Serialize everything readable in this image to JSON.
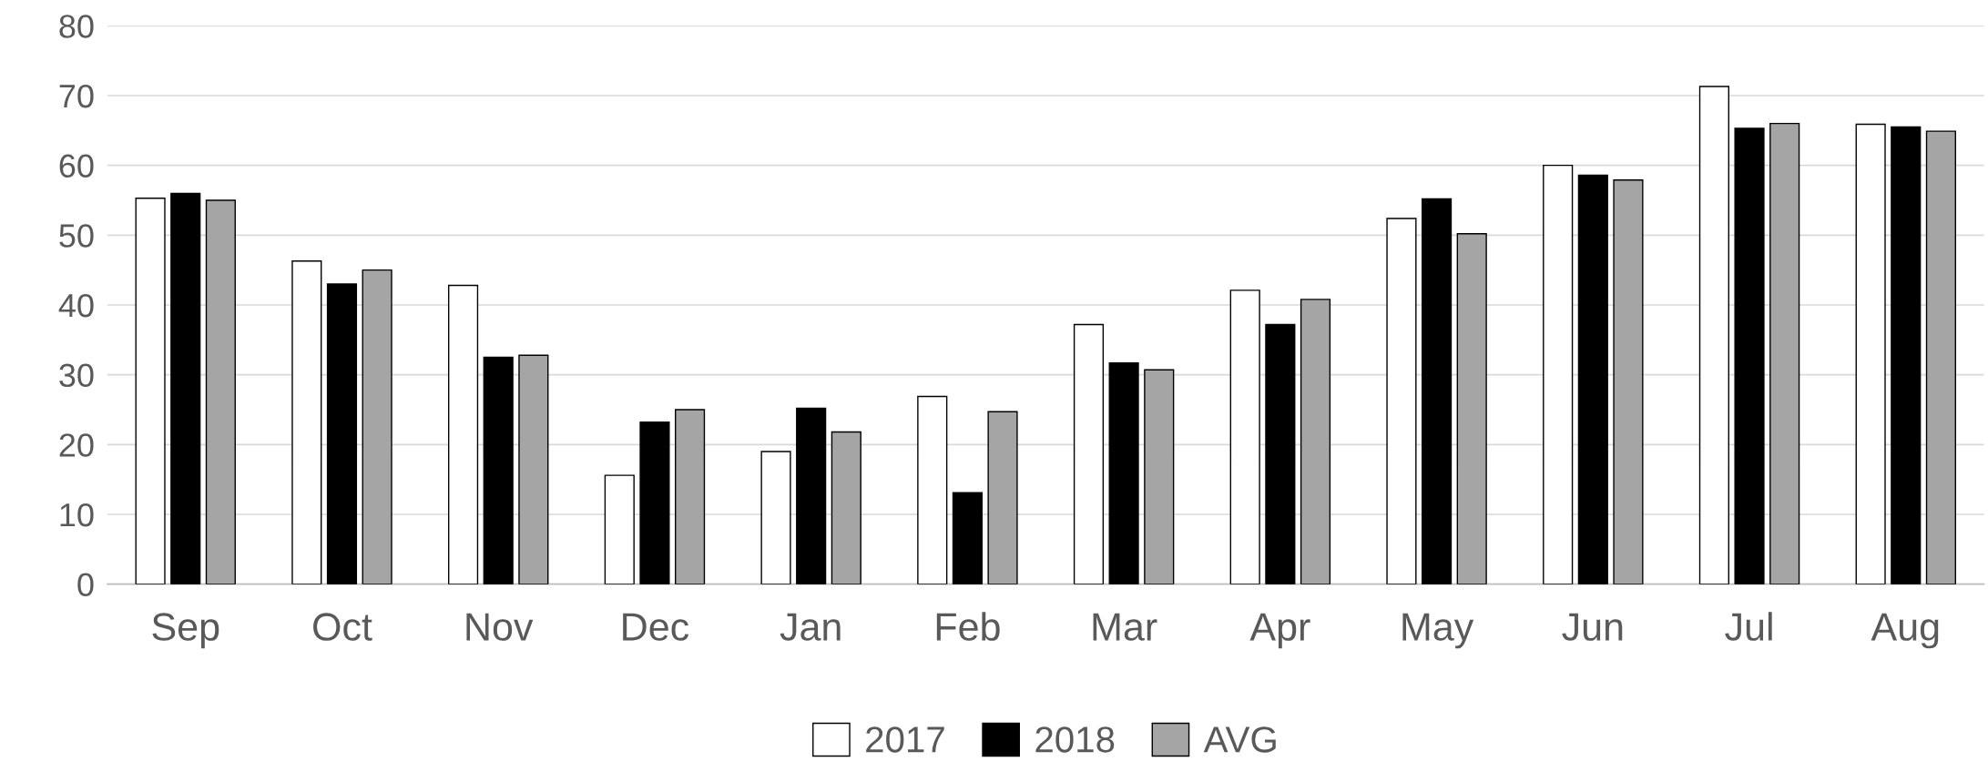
{
  "chart_data": {
    "type": "bar",
    "categories": [
      "Sep",
      "Oct",
      "Nov",
      "Dec",
      "Jan",
      "Feb",
      "Mar",
      "Apr",
      "May",
      "Jun",
      "Jul",
      "Aug"
    ],
    "series": [
      {
        "name": "2017",
        "color": "#ffffff",
        "values": [
          55.3,
          46.3,
          42.8,
          15.6,
          19.0,
          26.9,
          37.2,
          42.1,
          52.4,
          60.0,
          71.3,
          65.9
        ]
      },
      {
        "name": "2018",
        "color": "#000000",
        "values": [
          56.0,
          43.0,
          32.5,
          23.2,
          25.2,
          13.1,
          31.7,
          37.2,
          55.2,
          58.6,
          65.3,
          65.5
        ]
      },
      {
        "name": "AVG",
        "color": "#a5a5a5",
        "values": [
          55.0,
          45.0,
          32.8,
          25.0,
          21.8,
          24.7,
          30.7,
          40.8,
          50.2,
          57.9,
          66.0,
          64.9
        ]
      }
    ],
    "ylim": [
      0,
      80
    ],
    "yticks": [
      0,
      10,
      20,
      30,
      40,
      50,
      60,
      70,
      80
    ],
    "grid": "y",
    "legend": "bottom"
  }
}
